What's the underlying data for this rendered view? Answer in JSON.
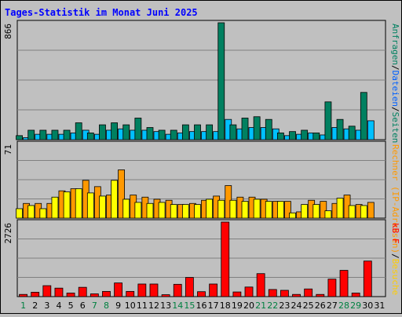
{
  "chart_data": {
    "type": "bar",
    "title": "Tages-Statistik im Monat Juni 2025",
    "days": [
      "1",
      "2",
      "3",
      "4",
      "5",
      "6",
      "7",
      "8",
      "9",
      "10",
      "11",
      "12",
      "13",
      "14",
      "15",
      "16",
      "17",
      "18",
      "19",
      "20",
      "21",
      "22",
      "23",
      "24",
      "25",
      "26",
      "27",
      "28",
      "29",
      "30",
      "31"
    ],
    "weekend_days": [
      "1",
      "7",
      "8",
      "14",
      "15",
      "21",
      "22",
      "28",
      "29"
    ],
    "panels": [
      {
        "id": "top",
        "ymax_label": "866",
        "ylim": [
          0,
          866
        ],
        "right_label": [
          "Anfragen",
          "/",
          "Dateien",
          "/",
          "Seiten"
        ],
        "series": [
          {
            "name": "Anfragen",
            "color": "#008060",
            "values": [
              30,
              70,
              70,
              70,
              70,
              125,
              50,
              110,
              125,
              110,
              160,
              90,
              70,
              70,
              110,
              110,
              110,
              866,
              110,
              160,
              170,
              150,
              50,
              60,
              70,
              50,
              280,
              150,
              100,
              350
            ]
          },
          {
            "name": "Dateien",
            "color": "#00c0ff",
            "values": [
              15,
              40,
              40,
              40,
              50,
              70,
              40,
              70,
              80,
              70,
              70,
              60,
              40,
              50,
              60,
              60,
              60,
              150,
              80,
              90,
              90,
              80,
              30,
              40,
              50,
              35,
              90,
              80,
              70,
              140
            ]
          }
        ]
      },
      {
        "id": "mid",
        "ymax_label": "71",
        "ylim": [
          0,
          71
        ],
        "right_label": [
          "Rechner",
          " (IP-Adressen)",
          "/",
          "Besuche"
        ],
        "series": [
          {
            "name": "Besuche",
            "color": "#ffff00",
            "values": [
              9,
              12,
              9,
              20,
              25,
              28,
              24,
              21,
              36,
              18,
              15,
              14,
              15,
              13,
              13,
              13,
              18,
              17,
              17,
              16,
              18,
              16,
              16,
              5,
              13,
              13,
              7,
              19,
              12,
              12
            ]
          },
          {
            "name": "Rechner",
            "color": "#ff9900",
            "values": [
              14,
              14,
              14,
              26,
              28,
              36,
              30,
              22,
              46,
              22,
              20,
              18,
              17,
              13,
              14,
              17,
              21,
              31,
              20,
              20,
              18,
              16,
              16,
              6,
              17,
              16,
              14,
              22,
              13,
              15
            ]
          }
        ]
      },
      {
        "id": "bottom",
        "ymax_label": "2726",
        "ylim": [
          0,
          2726
        ],
        "right_label": [
          "kB F"
        ],
        "series": [
          {
            "name": "kB F",
            "color": "#ff0000",
            "values": [
              80,
              160,
              400,
              310,
              130,
              340,
              100,
              190,
              500,
              190,
              460,
              460,
              70,
              450,
              700,
              180,
              460,
              2726,
              170,
              350,
              840,
              260,
              230,
              80,
              280,
              80,
              640,
              960,
              130,
              1300
            ]
          }
        ]
      }
    ]
  },
  "colors": {
    "background": "#c0c0c0",
    "title": "#0000ff",
    "axis_text": "#000000",
    "weekend_text": "#008040",
    "grid": "#808080"
  }
}
